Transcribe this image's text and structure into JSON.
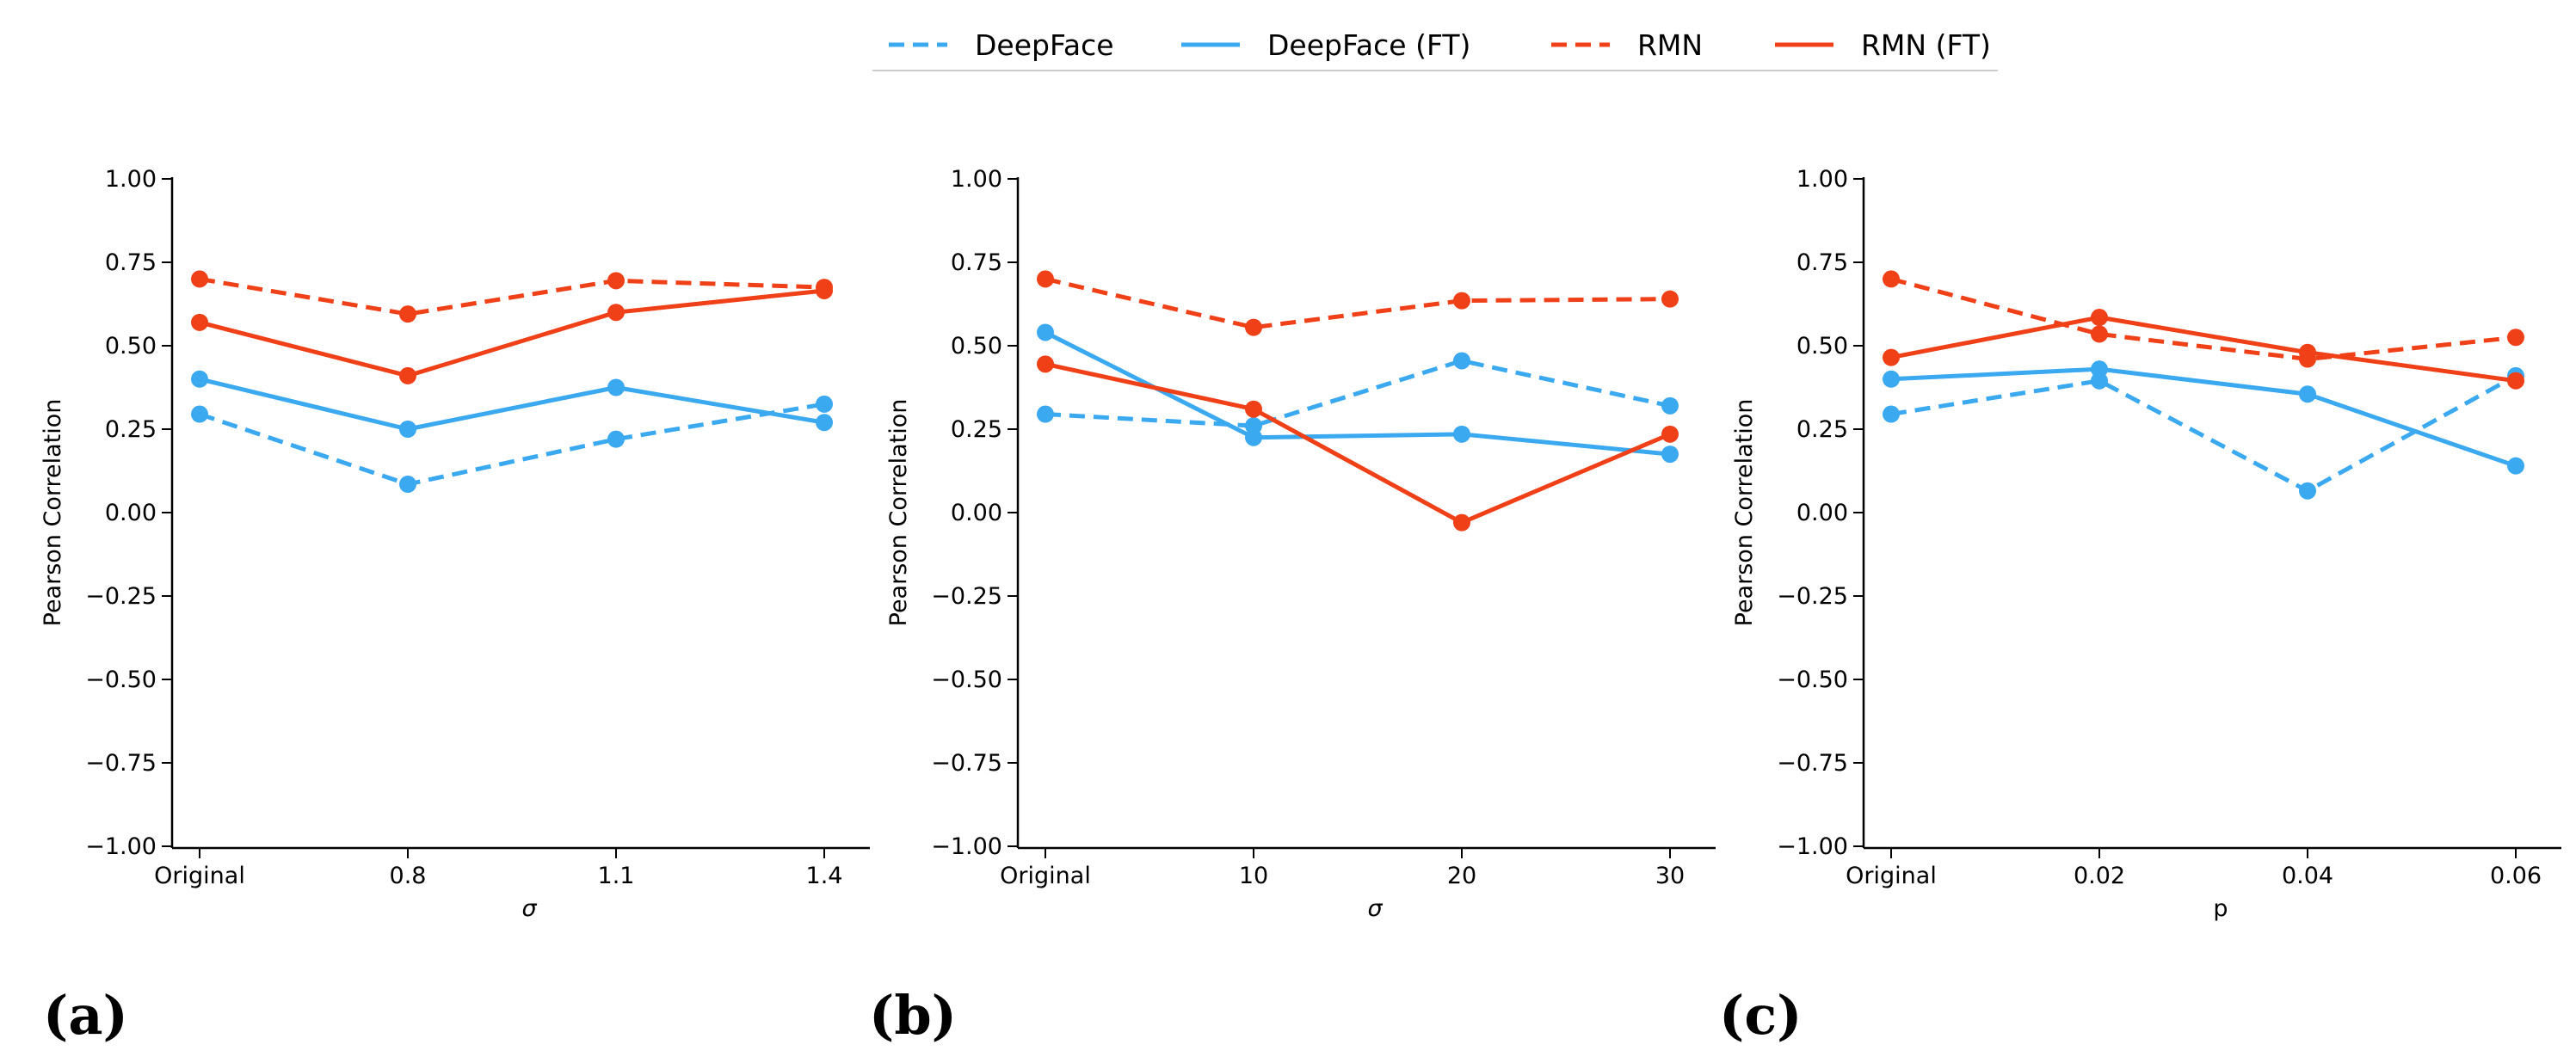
{
  "legend": [
    {
      "name": "DeepFace",
      "color": "#3ba9f0",
      "style": "dashed"
    },
    {
      "name": "DeepFace (FT)",
      "color": "#3ba9f0",
      "style": "solid"
    },
    {
      "name": "RMN",
      "color": "#f04018",
      "style": "dashed"
    },
    {
      "name": "RMN (FT)",
      "color": "#f04018",
      "style": "solid"
    }
  ],
  "chart_data": [
    {
      "type": "line",
      "panel_label": "(a)",
      "xlabel": "σ",
      "ylabel": "Pearson Correlation",
      "ylim": [
        -1.0,
        1.0
      ],
      "yticks": [
        -1.0,
        -0.75,
        -0.5,
        -0.25,
        0.0,
        0.25,
        0.5,
        0.75,
        1.0
      ],
      "ytick_labels": [
        "−1.00",
        "−0.75",
        "−0.50",
        "−0.25",
        "0.00",
        "0.25",
        "0.50",
        "0.75",
        "1.00"
      ],
      "categories": [
        "Original",
        "0.8",
        "1.1",
        "1.4"
      ],
      "series": [
        {
          "name": "DeepFace",
          "values": [
            0.295,
            0.085,
            0.22,
            0.325
          ]
        },
        {
          "name": "DeepFace (FT)",
          "values": [
            0.4,
            0.25,
            0.375,
            0.27
          ]
        },
        {
          "name": "RMN",
          "values": [
            0.7,
            0.595,
            0.695,
            0.675
          ]
        },
        {
          "name": "RMN (FT)",
          "values": [
            0.57,
            0.41,
            0.6,
            0.665
          ]
        }
      ]
    },
    {
      "type": "line",
      "panel_label": "(b)",
      "xlabel": "σ",
      "ylabel": "Pearson Correlation",
      "ylim": [
        -1.0,
        1.0
      ],
      "yticks": [
        -1.0,
        -0.75,
        -0.5,
        -0.25,
        0.0,
        0.25,
        0.5,
        0.75,
        1.0
      ],
      "ytick_labels": [
        "−1.00",
        "−0.75",
        "−0.50",
        "−0.25",
        "0.00",
        "0.25",
        "0.50",
        "0.75",
        "1.00"
      ],
      "categories": [
        "Original",
        "10",
        "20",
        "30"
      ],
      "series": [
        {
          "name": "DeepFace",
          "values": [
            0.295,
            0.26,
            0.455,
            0.32
          ]
        },
        {
          "name": "DeepFace (FT)",
          "values": [
            0.54,
            0.225,
            0.235,
            0.175
          ]
        },
        {
          "name": "RMN",
          "values": [
            0.7,
            0.555,
            0.635,
            0.64
          ]
        },
        {
          "name": "RMN (FT)",
          "values": [
            0.445,
            0.31,
            -0.03,
            0.235
          ]
        }
      ]
    },
    {
      "type": "line",
      "panel_label": "(c)",
      "xlabel": "p",
      "ylabel": "Pearson Correlation",
      "ylim": [
        -1.0,
        1.0
      ],
      "yticks": [
        -1.0,
        -0.75,
        -0.5,
        -0.25,
        0.0,
        0.25,
        0.5,
        0.75,
        1.0
      ],
      "ytick_labels": [
        "−1.00",
        "−0.75",
        "−0.50",
        "−0.25",
        "0.00",
        "0.25",
        "0.50",
        "0.75",
        "1.00"
      ],
      "categories": [
        "Original",
        "0.02",
        "0.04",
        "0.06"
      ],
      "series": [
        {
          "name": "DeepFace",
          "values": [
            0.295,
            0.395,
            0.065,
            0.41
          ]
        },
        {
          "name": "DeepFace (FT)",
          "values": [
            0.4,
            0.43,
            0.355,
            0.14
          ]
        },
        {
          "name": "RMN",
          "values": [
            0.7,
            0.535,
            0.46,
            0.525
          ]
        },
        {
          "name": "RMN (FT)",
          "values": [
            0.465,
            0.585,
            0.48,
            0.395
          ]
        }
      ]
    }
  ]
}
